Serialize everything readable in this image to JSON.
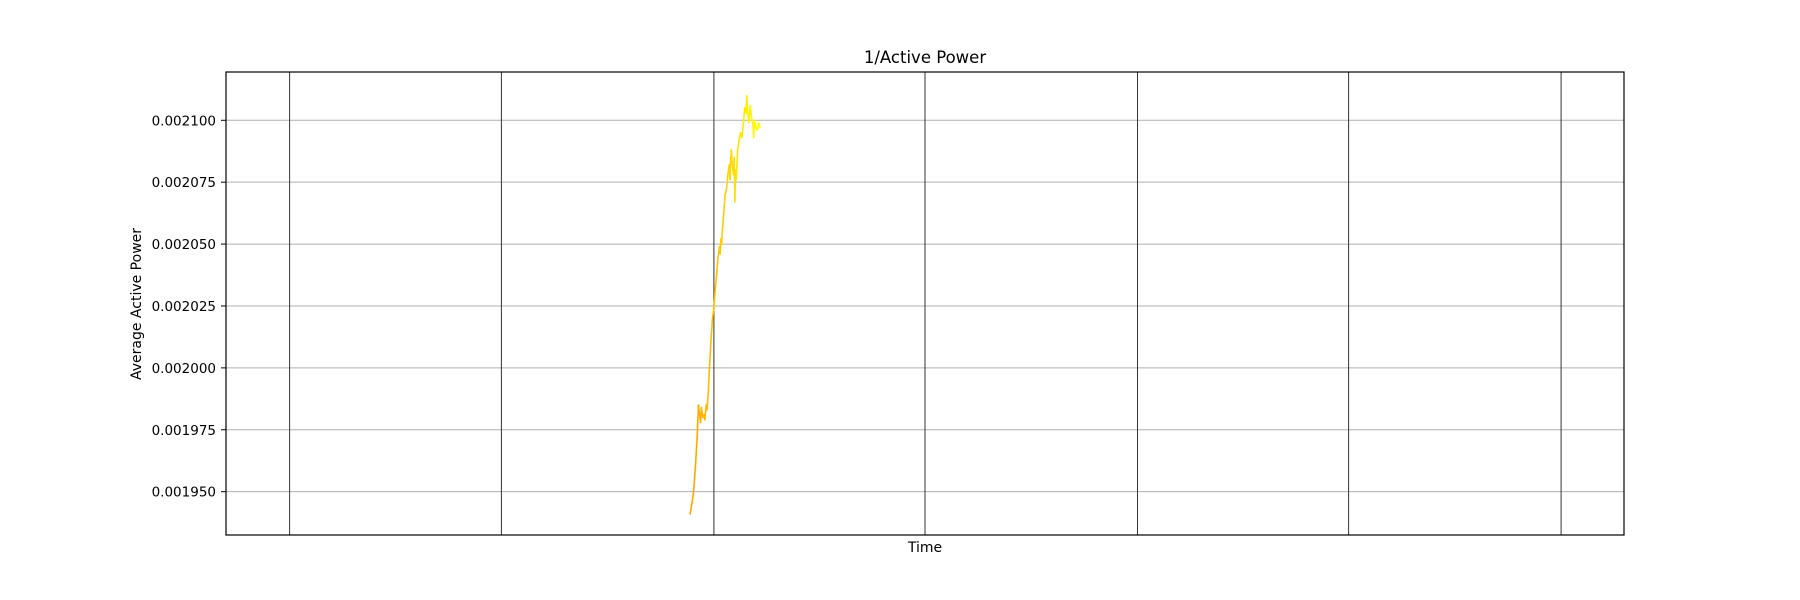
{
  "chart_data": {
    "type": "line",
    "title": "1/Active Power",
    "xlabel": "Time",
    "ylabel": "Average Active Power",
    "ylim": [
      0.0019325,
      0.0021195
    ],
    "xlim": [
      0,
      1
    ],
    "grid": true,
    "y_ticks": [
      {
        "value": 0.00195,
        "label": "0.001950"
      },
      {
        "value": 0.001975,
        "label": "0.001975"
      },
      {
        "value": 0.002,
        "label": "0.002000"
      },
      {
        "value": 0.002025,
        "label": "0.002025"
      },
      {
        "value": 0.00205,
        "label": "0.002050"
      },
      {
        "value": 0.002075,
        "label": "0.002075"
      },
      {
        "value": 0.0021,
        "label": "0.002100"
      }
    ],
    "x_gridlines": [
      0.0455,
      0.197,
      0.349,
      0.5,
      0.652,
      0.803,
      0.955
    ],
    "x_tick_labels_shown": false,
    "color_start": "#ffa500",
    "color_end": "#ffff00",
    "series": [
      {
        "x": [
          0.332,
          0.3335,
          0.3345,
          0.336,
          0.337,
          0.338,
          0.3385,
          0.3395,
          0.34,
          0.341,
          0.342,
          0.3425,
          0.3435,
          0.344,
          0.345,
          0.346,
          0.347,
          0.348,
          0.349,
          0.35,
          0.351,
          0.352,
          0.353,
          0.3535,
          0.354,
          0.3545,
          0.355,
          0.356,
          0.357,
          0.358,
          0.359,
          0.36,
          0.3605,
          0.361,
          0.3615,
          0.362,
          0.363,
          0.3635,
          0.364,
          0.3645,
          0.365,
          0.366,
          0.367,
          0.368,
          0.369,
          0.37,
          0.371,
          0.372,
          0.3725,
          0.373,
          0.374,
          0.375,
          0.376,
          0.377,
          0.3775,
          0.378,
          0.379,
          0.38,
          0.381,
          0.382
        ],
        "y": [
          0.001941,
          0.001946,
          0.00195,
          0.001962,
          0.001972,
          0.001985,
          0.001982,
          0.001978,
          0.001984,
          0.00198,
          0.001981,
          0.001979,
          0.001985,
          0.001983,
          0.00199,
          0.002002,
          0.002012,
          0.00202,
          0.002024,
          0.002032,
          0.002038,
          0.002045,
          0.002049,
          0.002046,
          0.002052,
          0.00205,
          0.002055,
          0.002062,
          0.00207,
          0.002072,
          0.002078,
          0.002082,
          0.002076,
          0.002084,
          0.002088,
          0.002083,
          0.002078,
          0.002085,
          0.002067,
          0.00208,
          0.002076,
          0.002088,
          0.002092,
          0.002095,
          0.002093,
          0.002098,
          0.002105,
          0.002103,
          0.00211,
          0.002104,
          0.002099,
          0.002106,
          0.002101,
          0.002098,
          0.002093,
          0.0021,
          0.002097,
          0.002096,
          0.002099,
          0.002097
        ]
      }
    ]
  }
}
